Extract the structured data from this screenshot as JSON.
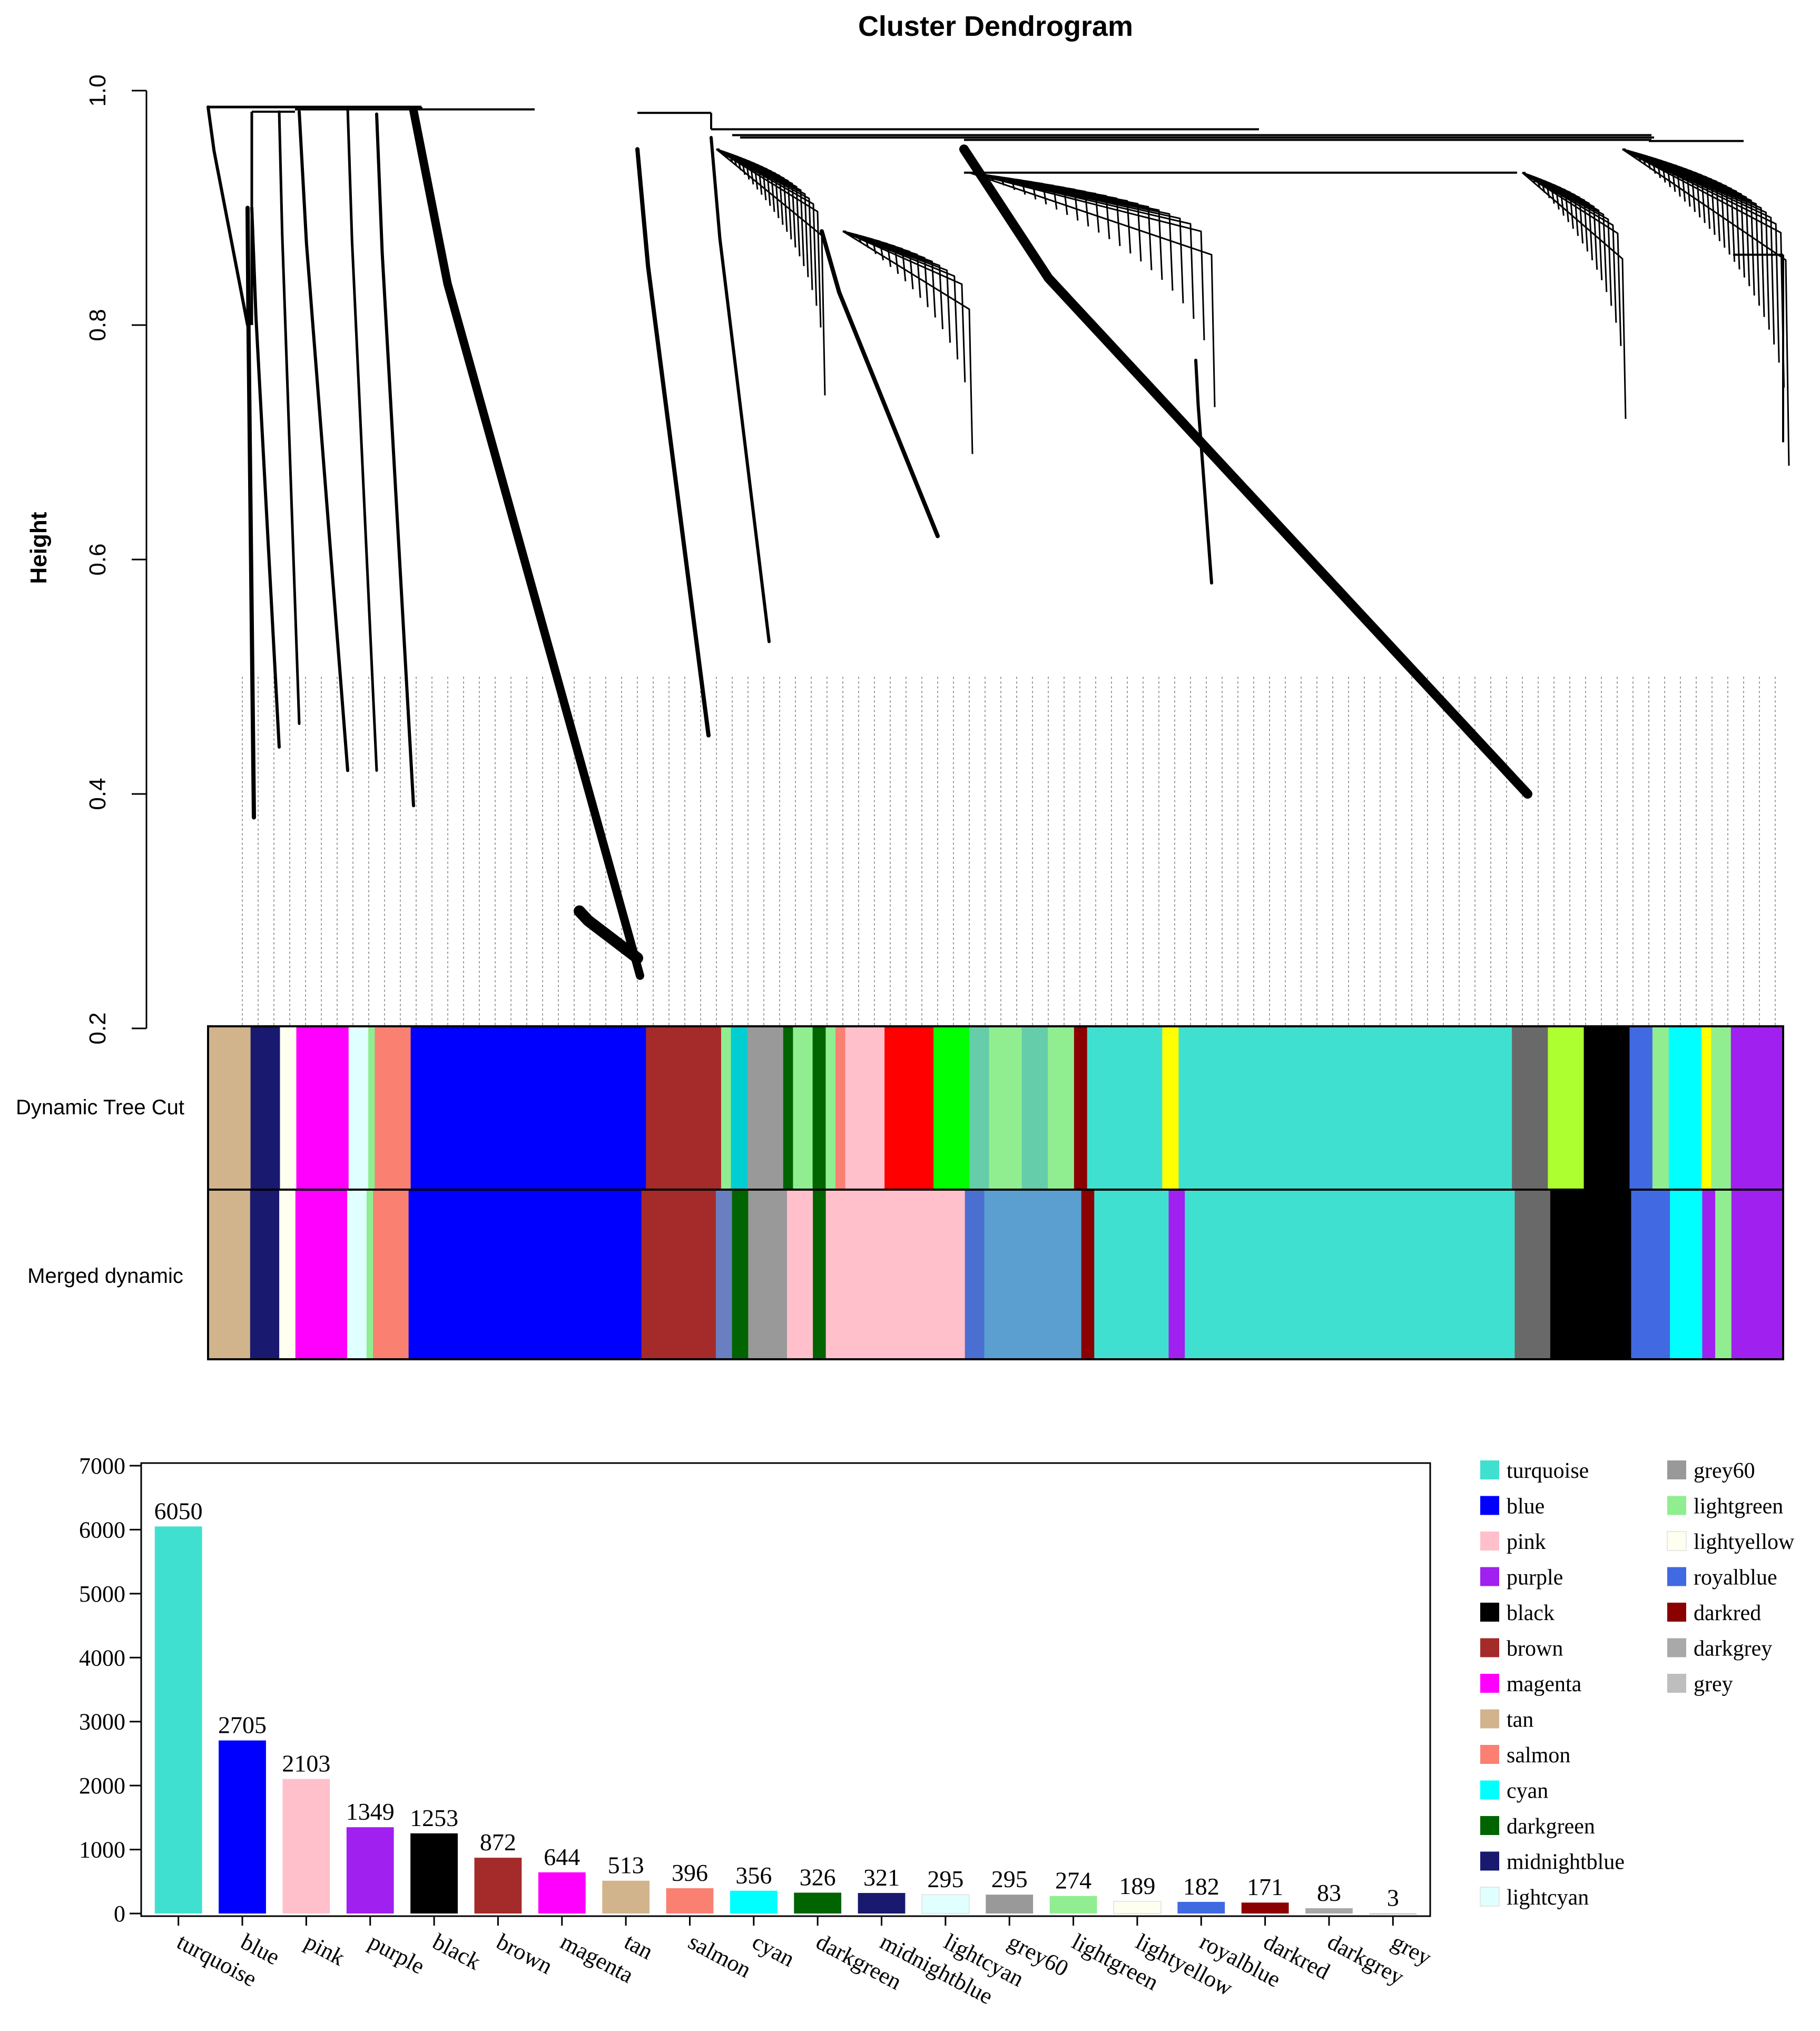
{
  "chart_data": [
    {
      "type": "dendrogram",
      "title": "Cluster Dendrogram",
      "ylabel": "Height",
      "ylim": [
        0.2,
        1.0
      ],
      "yticks": [
        "0.2",
        "0.4",
        "0.6",
        "0.8",
        "1.0"
      ],
      "color_rows": [
        "Dynamic Tree Cut",
        "Merged dynamic"
      ],
      "dynamic_tree_cut": [
        {
          "color": "#d2b48c",
          "w": 0.026
        },
        {
          "color": "#191970",
          "w": 0.018
        },
        {
          "color": "#fffff0",
          "w": 0.01
        },
        {
          "color": "#ff00ff",
          "w": 0.032
        },
        {
          "color": "#e0ffff",
          "w": 0.012
        },
        {
          "color": "#90ee90",
          "w": 0.004
        },
        {
          "color": "#fa8072",
          "w": 0.022
        },
        {
          "color": "#0000ff",
          "w": 0.144
        },
        {
          "color": "#a52a2a",
          "w": 0.046
        },
        {
          "color": "#90ee90",
          "w": 0.006
        },
        {
          "color": "#00ced1",
          "w": 0.01
        },
        {
          "color": "#999999",
          "w": 0.022
        },
        {
          "color": "#006400",
          "w": 0.006
        },
        {
          "color": "#90ee90",
          "w": 0.012
        },
        {
          "color": "#006400",
          "w": 0.008
        },
        {
          "color": "#90ee90",
          "w": 0.006
        },
        {
          "color": "#fa8072",
          "w": 0.006
        },
        {
          "color": "#ffc0cb",
          "w": 0.024
        },
        {
          "color": "#ff0000",
          "w": 0.03
        },
        {
          "color": "#00ff00",
          "w": 0.022
        },
        {
          "color": "#66cdaa",
          "w": 0.012
        },
        {
          "color": "#90ee90",
          "w": 0.02
        },
        {
          "color": "#66cdaa",
          "w": 0.016
        },
        {
          "color": "#90ee90",
          "w": 0.016
        },
        {
          "color": "#8b0000",
          "w": 0.008
        },
        {
          "color": "#40e0d0",
          "w": 0.046
        },
        {
          "color": "#ffff00",
          "w": 0.01
        },
        {
          "color": "#40e0d0",
          "w": 0.204
        },
        {
          "color": "#696969",
          "w": 0.022
        },
        {
          "color": "#adff2f",
          "w": 0.022
        },
        {
          "color": "#000000",
          "w": 0.028
        },
        {
          "color": "#4169e1",
          "w": 0.014
        },
        {
          "color": "#90ee90",
          "w": 0.01
        },
        {
          "color": "#00ffff",
          "w": 0.02
        },
        {
          "color": "#ffff00",
          "w": 0.006
        },
        {
          "color": "#90ee90",
          "w": 0.012
        },
        {
          "color": "#a020f0",
          "w": 0.032
        }
      ],
      "merged_dynamic": [
        {
          "color": "#d2b48c",
          "w": 0.026
        },
        {
          "color": "#191970",
          "w": 0.018
        },
        {
          "color": "#fffff0",
          "w": 0.01
        },
        {
          "color": "#ff00ff",
          "w": 0.032
        },
        {
          "color": "#e0ffff",
          "w": 0.012
        },
        {
          "color": "#90ee90",
          "w": 0.004
        },
        {
          "color": "#fa8072",
          "w": 0.022
        },
        {
          "color": "#0000ff",
          "w": 0.144
        },
        {
          "color": "#a52a2a",
          "w": 0.046
        },
        {
          "color": "#6a7fc0",
          "w": 0.01
        },
        {
          "color": "#006400",
          "w": 0.01
        },
        {
          "color": "#999999",
          "w": 0.024
        },
        {
          "color": "#ffc0cb",
          "w": 0.016
        },
        {
          "color": "#006400",
          "w": 0.008
        },
        {
          "color": "#ffc0cb",
          "w": 0.086
        },
        {
          "color": "#4b6fd0",
          "w": 0.012
        },
        {
          "color": "#5a9fd0",
          "w": 0.06
        },
        {
          "color": "#8b0000",
          "w": 0.008
        },
        {
          "color": "#40e0d0",
          "w": 0.046
        },
        {
          "color": "#a020f0",
          "w": 0.01
        },
        {
          "color": "#40e0d0",
          "w": 0.204
        },
        {
          "color": "#696969",
          "w": 0.022
        },
        {
          "color": "#000000",
          "w": 0.05
        },
        {
          "color": "#4169e1",
          "w": 0.024
        },
        {
          "color": "#00ffff",
          "w": 0.02
        },
        {
          "color": "#a020f0",
          "w": 0.008
        },
        {
          "color": "#90ee90",
          "w": 0.01
        },
        {
          "color": "#a020f0",
          "w": 0.032
        }
      ]
    },
    {
      "type": "bar",
      "categories": [
        "turquoise",
        "blue",
        "pink",
        "purple",
        "black",
        "brown",
        "magenta",
        "tan",
        "salmon",
        "cyan",
        "darkgreen",
        "midnightblue",
        "lightcyan",
        "grey60",
        "lightgreen",
        "lightyellow",
        "royalblue",
        "darkred",
        "darkgrey",
        "grey"
      ],
      "values": [
        6050,
        2705,
        2103,
        1349,
        1253,
        872,
        644,
        513,
        396,
        356,
        326,
        321,
        295,
        295,
        274,
        189,
        182,
        171,
        83,
        3
      ],
      "value_labels": [
        "6050",
        "2705",
        "2103",
        "1349",
        "1253",
        "872",
        "644",
        "513",
        "396",
        "356",
        "326",
        "321",
        "295",
        "295",
        "274",
        "189",
        "182",
        "171",
        "83",
        "3"
      ],
      "colors": [
        "#40e0d0",
        "#0000ff",
        "#ffc0cb",
        "#a020f0",
        "#000000",
        "#a52a2a",
        "#ff00ff",
        "#d2b48c",
        "#fa8072",
        "#00ffff",
        "#006400",
        "#191970",
        "#e0ffff",
        "#999999",
        "#90ee90",
        "#fffff0",
        "#4169e1",
        "#8b0000",
        "#a9a9a9",
        "#bebebe"
      ],
      "ylim": [
        0,
        7000
      ],
      "yticks": [
        "0",
        "1000",
        "2000",
        "3000",
        "4000",
        "5000",
        "6000",
        "7000"
      ],
      "legend_placement": "right"
    }
  ]
}
